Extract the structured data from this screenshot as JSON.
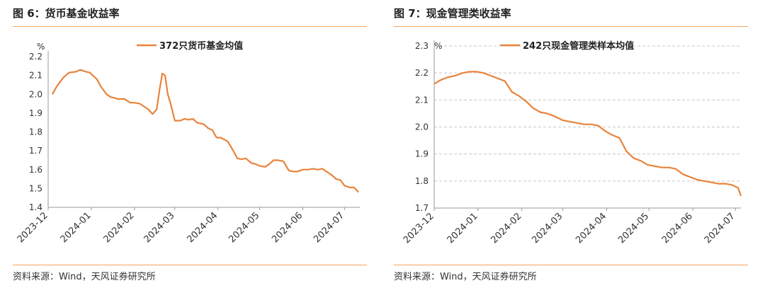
{
  "figures": [
    {
      "title": "图 6：货币基金收益率",
      "source": "资料来源：Wind，天风证券研究所"
    },
    {
      "title": "图 7：现金管理类收益率",
      "source": "资料来源：Wind，天风证券研究所"
    }
  ],
  "chart_data": [
    {
      "type": "line",
      "unit": "%",
      "ylim": [
        1.4,
        2.2
      ],
      "yticks": [
        "2.2",
        "2.1",
        "2.0",
        "1.9",
        "1.8",
        "1.7",
        "1.6",
        "1.5",
        "1.4"
      ],
      "xticks": [
        "2023-12",
        "2024-01",
        "2024-02",
        "2024-03",
        "2024-04",
        "2024-05",
        "2024-06",
        "2024-07"
      ],
      "xrange": [
        "2023-12-01",
        "2024-07-12"
      ],
      "grid": false,
      "legend": "top",
      "color": "#E8833A",
      "series": [
        {
          "name": "372只货币基金均值",
          "x": [
            "2023-12-04",
            "2023-12-07",
            "2023-12-12",
            "2023-12-16",
            "2023-12-21",
            "2023-12-24",
            "2023-12-28",
            "2023-12-31",
            "2024-01-02",
            "2024-01-05",
            "2024-01-08",
            "2024-01-12",
            "2024-01-15",
            "2024-01-18",
            "2024-01-20",
            "2024-01-25",
            "2024-01-29",
            "2024-02-01",
            "2024-02-05",
            "2024-02-08",
            "2024-02-11",
            "2024-02-14",
            "2024-02-17",
            "2024-02-19",
            "2024-02-21",
            "2024-02-23",
            "2024-02-25",
            "2024-02-27",
            "2024-03-01",
            "2024-03-05",
            "2024-03-08",
            "2024-03-11",
            "2024-03-14",
            "2024-03-17",
            "2024-03-22",
            "2024-03-25",
            "2024-03-28",
            "2024-03-31",
            "2024-04-03",
            "2024-04-08",
            "2024-04-12",
            "2024-04-15",
            "2024-04-18",
            "2024-04-21",
            "2024-04-25",
            "2024-04-28",
            "2024-05-01",
            "2024-05-05",
            "2024-05-08",
            "2024-05-11",
            "2024-05-14",
            "2024-05-18",
            "2024-05-22",
            "2024-05-25",
            "2024-05-28",
            "2024-06-01",
            "2024-06-05",
            "2024-06-08",
            "2024-06-12",
            "2024-06-15",
            "2024-06-18",
            "2024-06-22",
            "2024-06-25",
            "2024-06-28",
            "2024-07-01",
            "2024-07-05",
            "2024-07-08",
            "2024-07-11"
          ],
          "y": [
            2.0,
            2.04,
            2.09,
            2.115,
            2.12,
            2.13,
            2.12,
            2.115,
            2.1,
            2.08,
            2.04,
            2.0,
            1.985,
            1.98,
            1.975,
            1.975,
            1.955,
            1.955,
            1.95,
            1.935,
            1.92,
            1.895,
            1.92,
            2.02,
            2.11,
            2.1,
            2.0,
            1.95,
            1.86,
            1.86,
            1.87,
            1.865,
            1.87,
            1.85,
            1.84,
            1.82,
            1.81,
            1.77,
            1.77,
            1.75,
            1.7,
            1.66,
            1.655,
            1.66,
            1.635,
            1.63,
            1.62,
            1.615,
            1.63,
            1.65,
            1.65,
            1.645,
            1.595,
            1.59,
            1.59,
            1.6,
            1.6,
            1.605,
            1.6,
            1.605,
            1.59,
            1.57,
            1.55,
            1.545,
            1.515,
            1.505,
            1.505,
            1.48
          ]
        }
      ]
    },
    {
      "type": "line",
      "unit": "%",
      "ylim": [
        1.7,
        2.3
      ],
      "yticks": [
        "2.3",
        "2.2",
        "2.1",
        "2.0",
        "1.9",
        "1.8",
        "1.7"
      ],
      "xticks": [
        "2023-12",
        "2024-01",
        "2024-02",
        "2024-03",
        "2024-04",
        "2024-05",
        "2024-06",
        "2024-07"
      ],
      "xrange": [
        "2023-12-01",
        "2024-07-05"
      ],
      "grid": true,
      "legend": "top",
      "color": "#E8833A",
      "series": [
        {
          "name": "242只现金管理类样本均值",
          "x": [
            "2023-12-01",
            "2023-12-06",
            "2023-12-11",
            "2023-12-16",
            "2023-12-21",
            "2023-12-26",
            "2023-12-31",
            "2024-01-05",
            "2024-01-10",
            "2024-01-15",
            "2024-01-20",
            "2024-01-25",
            "2024-01-30",
            "2024-02-04",
            "2024-02-09",
            "2024-02-14",
            "2024-02-19",
            "2024-02-24",
            "2024-03-01",
            "2024-03-06",
            "2024-03-11",
            "2024-03-16",
            "2024-03-21",
            "2024-03-26",
            "2024-03-31",
            "2024-04-05",
            "2024-04-10",
            "2024-04-15",
            "2024-04-20",
            "2024-04-25",
            "2024-04-30",
            "2024-05-05",
            "2024-05-10",
            "2024-05-15",
            "2024-05-20",
            "2024-05-25",
            "2024-05-30",
            "2024-06-04",
            "2024-06-09",
            "2024-06-14",
            "2024-06-19",
            "2024-06-24",
            "2024-06-29",
            "2024-07-03",
            "2024-07-05"
          ],
          "y": [
            2.16,
            2.175,
            2.185,
            2.19,
            2.2,
            2.205,
            2.205,
            2.2,
            2.19,
            2.18,
            2.17,
            2.13,
            2.115,
            2.095,
            2.07,
            2.055,
            2.05,
            2.04,
            2.025,
            2.02,
            2.015,
            2.01,
            2.01,
            2.005,
            1.985,
            1.97,
            1.96,
            1.91,
            1.885,
            1.875,
            1.86,
            1.855,
            1.85,
            1.85,
            1.845,
            1.825,
            1.815,
            1.805,
            1.8,
            1.795,
            1.79,
            1.79,
            1.785,
            1.775,
            1.745
          ]
        }
      ]
    }
  ]
}
